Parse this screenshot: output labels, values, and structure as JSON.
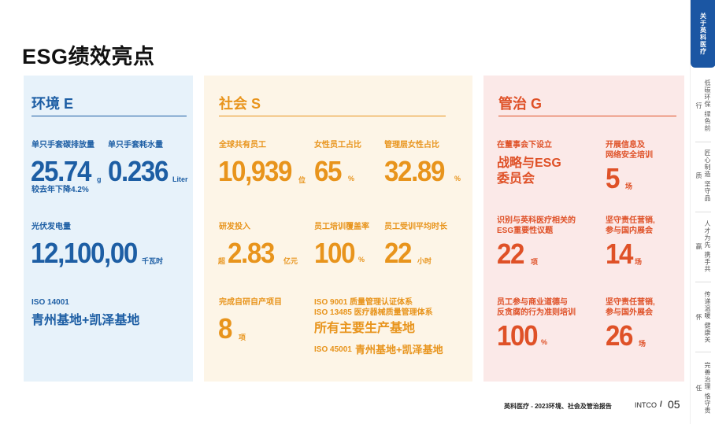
{
  "page_title": "ESG绩效亮点",
  "environment": {
    "title": "环境 E",
    "carbon": {
      "label": "单只手套碳排放量",
      "value": "25.74",
      "unit": "g",
      "note": "较去年下降4.2%"
    },
    "water": {
      "label": "单只手套耗水量",
      "value": "0.236",
      "unit": "Liter"
    },
    "solar": {
      "label": "光伏发电量",
      "value": "12,100,00",
      "unit": "千瓦时"
    },
    "iso": {
      "label": "ISO 14001",
      "value": "青州基地+凯泽基地"
    }
  },
  "social": {
    "title": "社会 S",
    "employees": {
      "label": "全球共有员工",
      "value": "10,939",
      "unit": "位"
    },
    "female": {
      "label": "女性员工占比",
      "value": "65",
      "unit": "%"
    },
    "female_mgmt": {
      "label": "管理层女性占比",
      "value": "32.89",
      "unit": "%"
    },
    "rd": {
      "label": "研发投入",
      "prefix": "超",
      "value": "2.83",
      "unit": "亿元"
    },
    "training_cov": {
      "label": "员工培训覆盖率",
      "value": "100",
      "unit": "%"
    },
    "training_hours": {
      "label": "员工受训平均时长",
      "value": "22",
      "unit": "小时"
    },
    "projects": {
      "label": "完成自研自产项目",
      "value": "8",
      "unit": "项"
    },
    "iso9001": "ISO 9001 质量管理认证体系",
    "iso13485": "ISO 13485 医疗器械质量管理体系",
    "all_bases": "所有主要生产基地",
    "iso45001": "ISO 45001",
    "iso45001_value": "青州基地+凯泽基地"
  },
  "governance": {
    "title": "管治 G",
    "committee": {
      "label": "在董事会下设立",
      "value_line1": "战略与ESG",
      "value_line2": "委员会"
    },
    "infosec": {
      "label_line1": "开展信息及",
      "label_line2": "网络安全培训",
      "value": "5",
      "unit": "场"
    },
    "topics": {
      "label_line1": "识别与英科医疗相关的",
      "label_line2": "ESG重要性议题",
      "value": "22",
      "unit": "项"
    },
    "domestic": {
      "label_line1": "坚守责任营销,",
      "label_line2": "参与国内展会",
      "value": "14",
      "unit": "场"
    },
    "ethics": {
      "label_line1": "员工参与商业道德与",
      "label_line2": "反贪腐的行为准则培训",
      "value": "100",
      "unit": "%"
    },
    "overseas": {
      "label_line1": "坚守责任营销,",
      "label_line2": "参与国外展会",
      "value": "26",
      "unit": "场"
    }
  },
  "sidebar": {
    "items": [
      "关于英科医疗",
      "低碳环保 绿色前行",
      "匠心制造 坚守品质",
      "人才为先 携手共赢",
      "传递温暖 健康关怀",
      "完善治理 恪守责任"
    ]
  },
  "footer": {
    "report": "英科医疗 - 2023环境、社会及管治报告",
    "brand": "INTCO",
    "slash": "/",
    "page": "05"
  }
}
